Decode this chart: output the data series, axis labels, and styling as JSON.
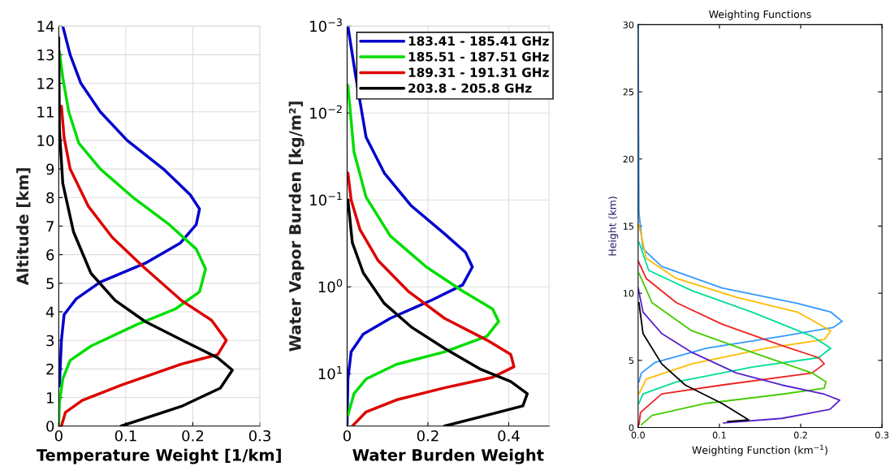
{
  "chart_data": [
    {
      "type": "line",
      "xlabel": "Temperature Weight [1/km]",
      "ylabel": "Altitude [km]",
      "xlim": [
        0,
        0.3
      ],
      "xticks": [
        0,
        0.1,
        0.2,
        0.3
      ],
      "ylim": [
        0,
        14
      ],
      "yticks": [
        0,
        1,
        2,
        3,
        4,
        5,
        6,
        7,
        8,
        9,
        10,
        11,
        12,
        13,
        14
      ],
      "grid": true,
      "legend": false,
      "series": [
        {
          "color": "#0000cc",
          "x": [
            0.006,
            0.017,
            0.033,
            0.062,
            0.102,
            0.156,
            0.196,
            0.21,
            0.205,
            0.181,
            0.129,
            0.062,
            0.026,
            0.008,
            0.004,
            0.001
          ],
          "values": [
            14,
            13,
            12,
            11,
            10,
            9,
            8.1,
            7.6,
            7.05,
            6.4,
            5.7,
            5.04,
            4.45,
            3.9,
            3,
            1.4
          ]
        },
        {
          "color": "#00dd00",
          "x": [
            0.001,
            0.006,
            0.015,
            0.03,
            0.062,
            0.111,
            0.165,
            0.205,
            0.219,
            0.21,
            0.174,
            0.116,
            0.048,
            0.017,
            0.006,
            0.001,
            0
          ],
          "values": [
            13.1,
            12.2,
            11,
            9.9,
            9,
            8,
            7.05,
            6.2,
            5.5,
            4.7,
            4.1,
            3.55,
            2.8,
            2.3,
            1.65,
            0.8,
            0
          ]
        },
        {
          "color": "#dd0000",
          "x": [
            0.004,
            0.008,
            0.017,
            0.044,
            0.08,
            0.125,
            0.183,
            0.228,
            0.25,
            0.237,
            0.183,
            0.093,
            0.035,
            0.01,
            0.004
          ],
          "values": [
            11.2,
            10.1,
            9,
            7.7,
            6.6,
            5.6,
            4.4,
            3.7,
            3.0,
            2.5,
            2.17,
            1.43,
            0.9,
            0.48,
            0
          ]
        },
        {
          "color": "#000000",
          "x": [
            0,
            0.001,
            0.006,
            0.022,
            0.048,
            0.084,
            0.129,
            0.183,
            0.237,
            0.259,
            0.241,
            0.183,
            0.093
          ],
          "values": [
            13.6,
            10.4,
            8.5,
            6.8,
            5.35,
            4.4,
            3.66,
            3.02,
            2.39,
            1.96,
            1.33,
            0.69,
            0
          ]
        }
      ]
    },
    {
      "type": "line",
      "xlabel": "Water Burden Weight",
      "ylabel": "Water Vapor Burden [kg/m²]",
      "xlim": [
        0,
        0.5
      ],
      "xticks": [
        0,
        0.2,
        0.4
      ],
      "log": "y",
      "ylim": [
        40,
        0.001
      ],
      "yticks": [
        {
          "value": 0.001,
          "label": "10$^{−3}$"
        },
        {
          "value": 0.01,
          "label": "10$^{−2}$"
        },
        {
          "value": 0.1,
          "label": "10$^{−1}$"
        },
        {
          "value": 1,
          "label": "10$^{0}$"
        },
        {
          "value": 10,
          "label": "10$^{1}$"
        }
      ],
      "grid": true,
      "legend": "top right",
      "series": [
        {
          "name": "183.41 - 185.41 GHz",
          "color": "#0000cc",
          "x": [
            0.002,
            0.021,
            0.047,
            0.092,
            0.159,
            0.241,
            0.293,
            0.31,
            0.286,
            0.211,
            0.107,
            0.04,
            0.01,
            0.002,
            0
          ],
          "values": [
            0.001,
            0.0037,
            0.019,
            0.049,
            0.117,
            0.245,
            0.4,
            0.59,
            0.95,
            1.41,
            2.3,
            3.5,
            5.6,
            11.5,
            40
          ]
        },
        {
          "name": "185.51 - 187.51 GHz",
          "color": "#00dd00",
          "x": [
            0.002,
            0.017,
            0.047,
            0.107,
            0.196,
            0.286,
            0.36,
            0.375,
            0.346,
            0.241,
            0.122,
            0.047,
            0.017,
            0.002
          ],
          "values": [
            0.0048,
            0.028,
            0.093,
            0.26,
            0.59,
            1.12,
            1.8,
            2.5,
            3.7,
            5.6,
            7.8,
            11.5,
            17,
            30
          ]
        },
        {
          "name": "189.31 - 191.31 GHz",
          "color": "#dd0000",
          "x": [
            0.002,
            0.01,
            0.032,
            0.077,
            0.151,
            0.241,
            0.346,
            0.405,
            0.413,
            0.36,
            0.241,
            0.122,
            0.047,
            0.013
          ],
          "values": [
            0.049,
            0.1,
            0.22,
            0.5,
            1.12,
            2.3,
            4.1,
            6.0,
            8.3,
            11,
            14.5,
            20,
            27.5,
            40
          ]
        },
        {
          "name": "203.8 - 205.8 GHz",
          "color": "#000000",
          "x": [
            0.002,
            0.013,
            0.04,
            0.092,
            0.159,
            0.241,
            0.331,
            0.405,
            0.446,
            0.435,
            0.346,
            0.241
          ],
          "values": [
            0.1,
            0.31,
            0.69,
            1.55,
            2.9,
            5.1,
            8.9,
            12.3,
            17,
            23.4,
            30,
            40
          ]
        }
      ]
    },
    {
      "type": "line",
      "title": "Weighting Functions",
      "xlabel": "Weighting Function (km$^{−1}$)",
      "ylabel": "Height (km)",
      "xlim": [
        0,
        0.3
      ],
      "xticks": [
        {
          "value": 0,
          "label": "0.0"
        },
        {
          "value": 0.1,
          "label": "0.1"
        },
        {
          "value": 0.2,
          "label": "0.2"
        },
        {
          "value": 0.3,
          "label": "0.3"
        }
      ],
      "ylim": [
        0,
        30
      ],
      "yticks": [
        0,
        5,
        10,
        15,
        20,
        25,
        30
      ],
      "grid": false,
      "legend": false,
      "series": [
        {
          "color": "#3399ff",
          "x": [
            0,
            0.001,
            0.006,
            0.029,
            0.103,
            0.196,
            0.237,
            0.251,
            0.24,
            0.177,
            0.084,
            0.021,
            0.004,
            0.001
          ],
          "values": [
            30,
            16,
            13.3,
            12,
            10.4,
            9.25,
            8.6,
            7.9,
            7.45,
            6.8,
            5.9,
            4.85,
            4.06,
            3.4
          ]
        },
        {
          "color": "#ffbb00",
          "x": [
            0.001,
            0.01,
            0.047,
            0.121,
            0.196,
            0.237,
            0.229,
            0.158,
            0.066,
            0.01,
            0.001
          ],
          "values": [
            15.1,
            12.6,
            11.1,
            9.7,
            8.6,
            7.2,
            6.55,
            5.9,
            4.74,
            3.6,
            2.5
          ]
        },
        {
          "color": "#00dd99",
          "x": [
            0.001,
            0.013,
            0.066,
            0.14,
            0.214,
            0.237,
            0.222,
            0.14,
            0.047,
            0.006,
            0.001
          ],
          "values": [
            13.8,
            11.7,
            10.2,
            8.6,
            6.8,
            5.9,
            5.2,
            4.5,
            3.4,
            2.5,
            1.8
          ]
        },
        {
          "color": "#ee2222",
          "x": [
            0,
            0.01,
            0.047,
            0.103,
            0.177,
            0.222,
            0.229,
            0.214,
            0.103,
            0.029,
            0.003,
            0.001
          ],
          "values": [
            12.4,
            11.1,
            9.3,
            7.7,
            6.1,
            5.2,
            4.74,
            4.06,
            3.16,
            2.5,
            1.13,
            0.2
          ]
        },
        {
          "color": "#44cc00",
          "x": [
            0.001,
            0.017,
            0.066,
            0.14,
            0.214,
            0.231,
            0.229,
            0.177,
            0.084,
            0.017,
            0.004
          ],
          "values": [
            11.5,
            9.3,
            7.2,
            5.6,
            4.06,
            3.4,
            2.93,
            2.48,
            1.8,
            0.9,
            0.2
          ]
        },
        {
          "color": "#5522cc",
          "x": [
            0,
            0.006,
            0.029,
            0.066,
            0.121,
            0.177,
            0.229,
            0.248,
            0.236,
            0.177,
            0.105
          ],
          "values": [
            10.4,
            8.6,
            7.0,
            5.6,
            4.06,
            3.16,
            2.48,
            2.03,
            1.35,
            0.68,
            0.34
          ]
        },
        {
          "color": "#000000",
          "x": [
            0.001,
            0.006,
            0.029,
            0.058,
            0.103,
            0.133,
            0.136,
            0.11
          ],
          "values": [
            9.3,
            7.0,
            4.74,
            3.16,
            1.8,
            0.68,
            0.56,
            0.45
          ]
        }
      ]
    }
  ]
}
